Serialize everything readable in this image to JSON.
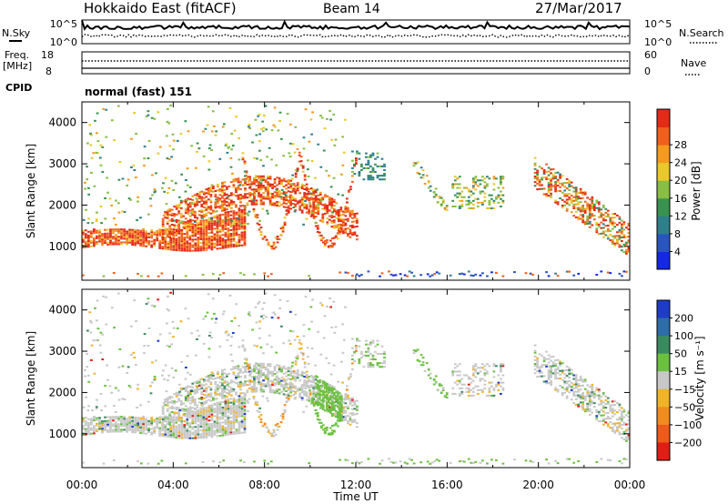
{
  "header": {
    "station": "Hokkaido East (fitACF)",
    "beam": "Beam 14",
    "date": "27/Mar/2017"
  },
  "top_panels": {
    "nsky_label": "N.Sky",
    "nsky_ticks": [
      "10^5",
      "10^0"
    ],
    "nsearch_label": "N.Search",
    "nsearch_ticks": [
      "10^5",
      "10^0"
    ],
    "freq_label_1": "Freq.",
    "freq_label_2": "[MHz]",
    "freq_ticks": [
      "18",
      "8"
    ],
    "nave_label": "Nave",
    "nave_ticks": [
      "60",
      "0"
    ],
    "cpid_label": "CPID",
    "cpid_text": "normal (fast) 151"
  },
  "chart_data": [
    {
      "type": "heatmap",
      "quantity": "Power",
      "xlabel": "",
      "ylabel": "Slant Range [km]",
      "colorbar_label": "Power [dB]",
      "x_ticks": [
        "00:00",
        "04:00",
        "08:00",
        "12:00",
        "16:00",
        "20:00",
        "00:00"
      ],
      "x_range_hours": [
        0,
        24
      ],
      "y_ticks": [
        1000,
        2000,
        3000,
        4000
      ],
      "y_range_km": [
        180,
        4500
      ],
      "colorbar_ticks": [
        4,
        8,
        12,
        16,
        20,
        24,
        28
      ],
      "colorbar_range": [
        0,
        32
      ],
      "colorbar_colors": [
        "#1428e6",
        "#2a55bf",
        "#2f7e8c",
        "#3a9150",
        "#88be44",
        "#e8c82a",
        "#f39a1f",
        "#f0601c",
        "#e42a18"
      ]
    },
    {
      "type": "heatmap",
      "quantity": "Velocity",
      "xlabel": "Time UT",
      "ylabel": "Slant Range [km]",
      "colorbar_label": "Velocity [m s⁻¹]",
      "x_ticks": [
        "00:00",
        "04:00",
        "08:00",
        "12:00",
        "16:00",
        "20:00",
        "00:00"
      ],
      "x_range_hours": [
        0,
        24
      ],
      "y_ticks": [
        1000,
        2000,
        3000,
        4000
      ],
      "y_range_km": [
        180,
        4500
      ],
      "colorbar_ticks": [
        "200",
        "100",
        "50",
        "15",
        "−15",
        "−50",
        "−100",
        "−200"
      ],
      "colorbar_colors": [
        "#1e3cc8",
        "#2f6ca8",
        "#3a8a60",
        "#6cc040",
        "#c8c8c8",
        "#f0b428",
        "#f08c1e",
        "#ee5a1a",
        "#e01e16"
      ]
    }
  ]
}
